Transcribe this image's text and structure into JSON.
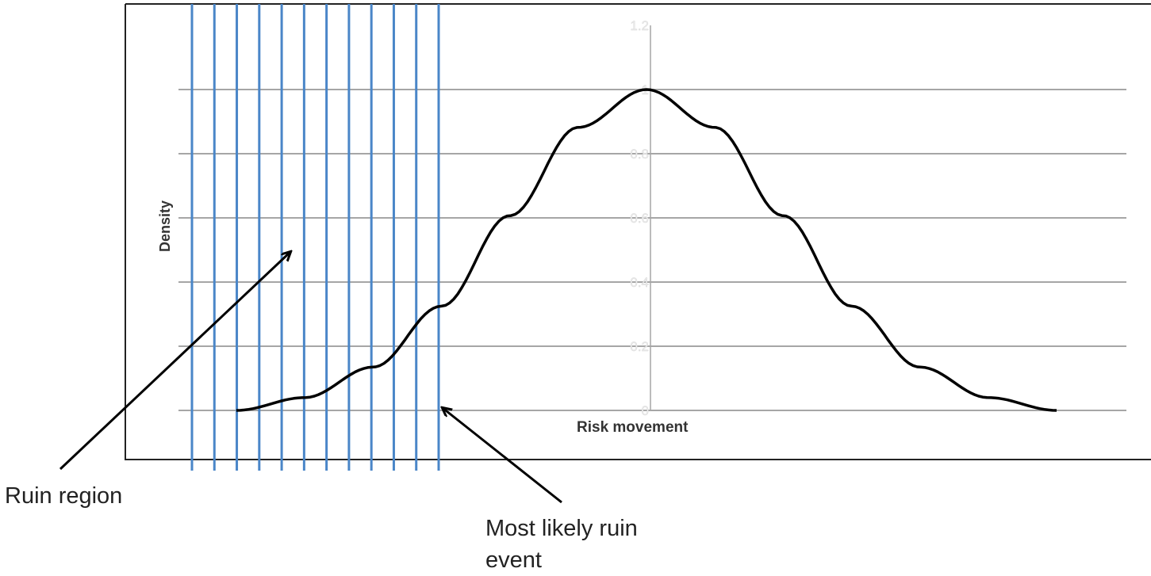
{
  "chart_data": {
    "type": "line",
    "title": "",
    "xlabel": "Risk movement",
    "ylabel": "Density",
    "ylim": [
      0,
      1.2
    ],
    "yticks": [
      "0",
      "0.2",
      "0.4",
      "0.6",
      "0.8",
      "1",
      "1.2"
    ],
    "grid": true,
    "series": [
      {
        "values_description": "bell-shaped density, peak 1 at centre, tails to 0",
        "x": [
          -3.0,
          -2.5,
          -2.0,
          -1.5,
          -1.0,
          -0.5,
          0.0,
          0.5,
          1.0,
          1.5,
          2.0,
          2.5,
          3.0
        ],
        "y": [
          0.0,
          0.04,
          0.135,
          0.325,
          0.607,
          0.882,
          1.0,
          0.882,
          0.607,
          0.325,
          0.135,
          0.04,
          0.0
        ]
      }
    ],
    "ruin_region": {
      "stripe_count": 12,
      "color": "#4a86c8"
    },
    "annotations": [
      "Ruin region",
      "Most likely ruin event"
    ],
    "colors": {
      "curve": "#000000",
      "grid": "#a6a6a6",
      "tick_label": "#ececec",
      "frame": "#222222"
    }
  },
  "labels": {
    "ruin_region": "Ruin region",
    "most_likely": "Most likely ruin event"
  }
}
